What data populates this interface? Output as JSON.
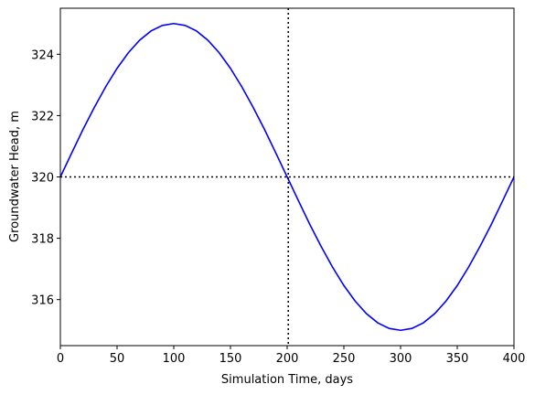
{
  "chart_data": {
    "type": "line",
    "xlabel": "Simulation Time, days",
    "ylabel": "Groundwater Head, m",
    "x": [
      0,
      10,
      20,
      30,
      40,
      50,
      60,
      70,
      80,
      90,
      100,
      110,
      120,
      130,
      140,
      150,
      160,
      170,
      180,
      190,
      200,
      210,
      220,
      230,
      240,
      250,
      260,
      270,
      280,
      290,
      300,
      310,
      320,
      330,
      340,
      350,
      360,
      370,
      380,
      390,
      400
    ],
    "series": [
      {
        "color": "#0000ff",
        "values": [
          320,
          320.78,
          321.55,
          322.27,
          322.94,
          323.54,
          324.05,
          324.46,
          324.76,
          324.94,
          325,
          324.94,
          324.76,
          324.46,
          324.05,
          323.54,
          322.94,
          322.27,
          321.55,
          320.78,
          320,
          319.22,
          318.45,
          317.73,
          317.06,
          316.46,
          315.95,
          315.54,
          315.24,
          315.06,
          315,
          315.06,
          315.24,
          315.54,
          315.95,
          316.46,
          317.06,
          317.73,
          318.45,
          319.22,
          320
        ]
      }
    ],
    "vlines": [
      201
    ],
    "hlines": [
      320
    ],
    "refline_color": "#000000",
    "xlim": [
      0,
      400
    ],
    "xticks": [
      0,
      50,
      100,
      150,
      200,
      250,
      300,
      350,
      400
    ],
    "ylim": [
      314.5,
      325.5
    ],
    "yticks": [
      316,
      318,
      320,
      322,
      324
    ]
  }
}
